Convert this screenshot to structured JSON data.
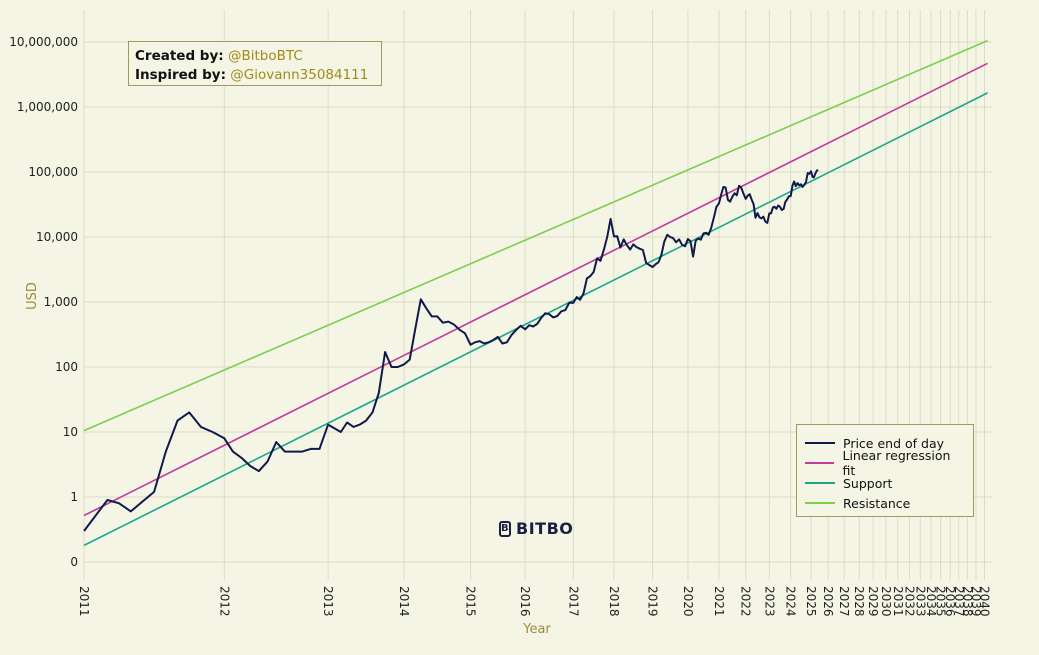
{
  "credits": {
    "created_key": "Created by:",
    "created_val": "@BitboBTC",
    "inspired_key": "Inspired by:",
    "inspired_val": "@Giovann35084111"
  },
  "brand": {
    "name": "BITBO",
    "icon": "bitbo-b-logo-icon"
  },
  "colors": {
    "background": "#f5f5e6",
    "grid": "#dcdcc4",
    "price": "#101a4a",
    "regression": "#c23b9a",
    "support": "#1aa88a",
    "resistance": "#7ccf4c",
    "axis_label": "#a08a3c"
  },
  "chart_data": {
    "type": "line",
    "xlabel": "Year",
    "ylabel": "USD",
    "y_scale": "log",
    "grid": true,
    "legend_position": "bottom-right",
    "x_range": [
      "2011",
      "2040"
    ],
    "x_tick_labels": [
      "2011",
      "2012",
      "2013",
      "2014",
      "2015",
      "2016",
      "2017",
      "2018",
      "2019",
      "2020",
      "2021",
      "2022",
      "2023",
      "2024",
      "2025",
      "2026",
      "2027",
      "2028",
      "2029",
      "2030",
      "2031",
      "2032",
      "2033",
      "2034",
      "2035",
      "2036",
      "2037",
      "2038",
      "2039",
      "2040"
    ],
    "y_tick_labels": [
      "0",
      "1",
      "10",
      "100",
      "1,000",
      "10,000",
      "100,000",
      "1,000,000",
      "10,000,000"
    ],
    "y_ticks": [
      0.1,
      1,
      10,
      100,
      1000,
      10000,
      100000,
      1000000,
      10000000
    ],
    "series": [
      {
        "name": "Price end of day",
        "color": "#101a4a",
        "points": [
          [
            "2011-01",
            0.3
          ],
          [
            "2011-03",
            0.9
          ],
          [
            "2011-04",
            0.8
          ],
          [
            "2011-05",
            0.6
          ],
          [
            "2011-06",
            0.85
          ],
          [
            "2011-07",
            1.2
          ],
          [
            "2011-08",
            5
          ],
          [
            "2011-09",
            15
          ],
          [
            "2011-10",
            20
          ],
          [
            "2011-11",
            12
          ],
          [
            "2011-12",
            10
          ],
          [
            "2012-01",
            8
          ],
          [
            "2012-02",
            5
          ],
          [
            "2012-03",
            4
          ],
          [
            "2012-04",
            3
          ],
          [
            "2012-05",
            2.5
          ],
          [
            "2012-06",
            3.5
          ],
          [
            "2012-07",
            7
          ],
          [
            "2012-08",
            5
          ],
          [
            "2012-09",
            5
          ],
          [
            "2012-10",
            5
          ],
          [
            "2012-11",
            5.5
          ],
          [
            "2012-12",
            5.5
          ],
          [
            "2013-01",
            13
          ],
          [
            "2013-03",
            10
          ],
          [
            "2013-04",
            14
          ],
          [
            "2013-05",
            12
          ],
          [
            "2013-06",
            13
          ],
          [
            "2013-07",
            15
          ],
          [
            "2013-08",
            20
          ],
          [
            "2013-09",
            40
          ],
          [
            "2013-10",
            170
          ],
          [
            "2013-11",
            100
          ],
          [
            "2013-12",
            100
          ],
          [
            "2014-01",
            110
          ],
          [
            "2014-02",
            130
          ],
          [
            "2014-03",
            380
          ],
          [
            "2014-04",
            1100
          ],
          [
            "2014-05",
            800
          ],
          [
            "2014-06",
            600
          ],
          [
            "2014-07",
            600
          ],
          [
            "2014-08",
            480
          ],
          [
            "2014-09",
            500
          ],
          [
            "2014-10",
            450
          ],
          [
            "2014-11",
            375
          ],
          [
            "2014-12",
            330
          ],
          [
            "2015-01",
            220
          ],
          [
            "2015-02",
            240
          ],
          [
            "2015-03",
            250
          ],
          [
            "2015-04",
            230
          ],
          [
            "2015-05",
            240
          ],
          [
            "2015-06",
            260
          ],
          [
            "2015-07",
            290
          ],
          [
            "2015-08",
            230
          ],
          [
            "2015-09",
            240
          ],
          [
            "2015-10",
            310
          ],
          [
            "2015-11",
            370
          ],
          [
            "2015-12",
            430
          ],
          [
            "2016-01",
            380
          ],
          [
            "2016-02",
            440
          ],
          [
            "2016-03",
            420
          ],
          [
            "2016-04",
            460
          ],
          [
            "2016-05",
            570
          ],
          [
            "2016-06",
            670
          ],
          [
            "2016-07",
            650
          ],
          [
            "2016-08",
            580
          ],
          [
            "2016-09",
            610
          ],
          [
            "2016-10",
            720
          ],
          [
            "2016-11",
            750
          ],
          [
            "2016-12",
            980
          ],
          [
            "2017-01",
            970
          ],
          [
            "2017-02",
            1190
          ],
          [
            "2017-03",
            1080
          ],
          [
            "2017-04",
            1350
          ],
          [
            "2017-05",
            2300
          ],
          [
            "2017-06",
            2500
          ],
          [
            "2017-07",
            2900
          ],
          [
            "2017-08",
            4700
          ],
          [
            "2017-09",
            4300
          ],
          [
            "2017-10",
            6400
          ],
          [
            "2017-11",
            10000
          ],
          [
            "2017-12",
            19000
          ],
          [
            "2018-01",
            10200
          ],
          [
            "2018-02",
            10300
          ],
          [
            "2018-03",
            6900
          ],
          [
            "2018-04",
            9200
          ],
          [
            "2018-05",
            7500
          ],
          [
            "2018-06",
            6400
          ],
          [
            "2018-07",
            7700
          ],
          [
            "2018-08",
            7000
          ],
          [
            "2018-09",
            6600
          ],
          [
            "2018-10",
            6300
          ],
          [
            "2018-11",
            4000
          ],
          [
            "2018-12",
            3700
          ],
          [
            "2019-01",
            3450
          ],
          [
            "2019-02",
            3800
          ],
          [
            "2019-03",
            4100
          ],
          [
            "2019-04",
            5300
          ],
          [
            "2019-05",
            8500
          ],
          [
            "2019-06",
            10800
          ],
          [
            "2019-07",
            10000
          ],
          [
            "2019-08",
            9600
          ],
          [
            "2019-09",
            8300
          ],
          [
            "2019-10",
            9200
          ],
          [
            "2019-11",
            7600
          ],
          [
            "2019-12",
            7200
          ],
          [
            "2020-01",
            9300
          ],
          [
            "2020-02",
            8600
          ],
          [
            "2020-03",
            5000
          ],
          [
            "2020-04",
            8800
          ],
          [
            "2020-05",
            9500
          ],
          [
            "2020-06",
            9100
          ],
          [
            "2020-07",
            11300
          ],
          [
            "2020-08",
            11600
          ],
          [
            "2020-09",
            10800
          ],
          [
            "2020-10",
            13800
          ],
          [
            "2020-11",
            19700
          ],
          [
            "2020-12",
            29000
          ],
          [
            "2021-01",
            33000
          ],
          [
            "2021-02",
            45000
          ],
          [
            "2021-03",
            58800
          ],
          [
            "2021-04",
            57700
          ],
          [
            "2021-05",
            37300
          ],
          [
            "2021-06",
            35000
          ],
          [
            "2021-07",
            41500
          ],
          [
            "2021-08",
            47100
          ],
          [
            "2021-09",
            43800
          ],
          [
            "2021-10",
            61300
          ],
          [
            "2021-11",
            57000
          ],
          [
            "2021-12",
            46300
          ],
          [
            "2022-01",
            38500
          ],
          [
            "2022-02",
            43200
          ],
          [
            "2022-03",
            45500
          ],
          [
            "2022-04",
            37700
          ],
          [
            "2022-05",
            31800
          ],
          [
            "2022-06",
            19800
          ],
          [
            "2022-07",
            23300
          ],
          [
            "2022-08",
            20000
          ],
          [
            "2022-09",
            19400
          ],
          [
            "2022-10",
            20500
          ],
          [
            "2022-11",
            17200
          ],
          [
            "2022-12",
            16500
          ],
          [
            "2023-01",
            23100
          ],
          [
            "2023-02",
            23100
          ],
          [
            "2023-03",
            28500
          ],
          [
            "2023-04",
            29200
          ],
          [
            "2023-05",
            27200
          ],
          [
            "2023-06",
            30500
          ],
          [
            "2023-07",
            29200
          ],
          [
            "2023-08",
            26000
          ],
          [
            "2023-09",
            27000
          ],
          [
            "2023-10",
            34500
          ],
          [
            "2023-11",
            37700
          ],
          [
            "2023-12",
            42300
          ],
          [
            "2024-01",
            42600
          ],
          [
            "2024-02",
            61200
          ],
          [
            "2024-03",
            71300
          ],
          [
            "2024-04",
            60600
          ],
          [
            "2024-05",
            67500
          ],
          [
            "2024-06",
            62700
          ],
          [
            "2024-07",
            64600
          ],
          [
            "2024-08",
            59000
          ],
          [
            "2024-09",
            63300
          ],
          [
            "2024-10",
            70200
          ],
          [
            "2024-11",
            96400
          ],
          [
            "2024-12",
            93400
          ],
          [
            "2025-01",
            102400
          ],
          [
            "2025-02",
            84400
          ],
          [
            "2025-03",
            82500
          ],
          [
            "2025-04",
            94200
          ],
          [
            "2025-05",
            104600
          ],
          [
            "2025-06",
            107100
          ]
        ]
      },
      {
        "name": "Linear regression fit",
        "color": "#c23b9a",
        "points": [
          [
            "2011-01",
            0.52
          ],
          [
            "2040-06",
            4700000
          ]
        ]
      },
      {
        "name": "Support",
        "color": "#1aa88a",
        "points": [
          [
            "2011-01",
            0.18
          ],
          [
            "2040-06",
            1650000
          ]
        ]
      },
      {
        "name": "Resistance",
        "color": "#7ccf4c",
        "points": [
          [
            "2011-01",
            10.5
          ],
          [
            "2040-06",
            10500000
          ]
        ]
      }
    ]
  }
}
